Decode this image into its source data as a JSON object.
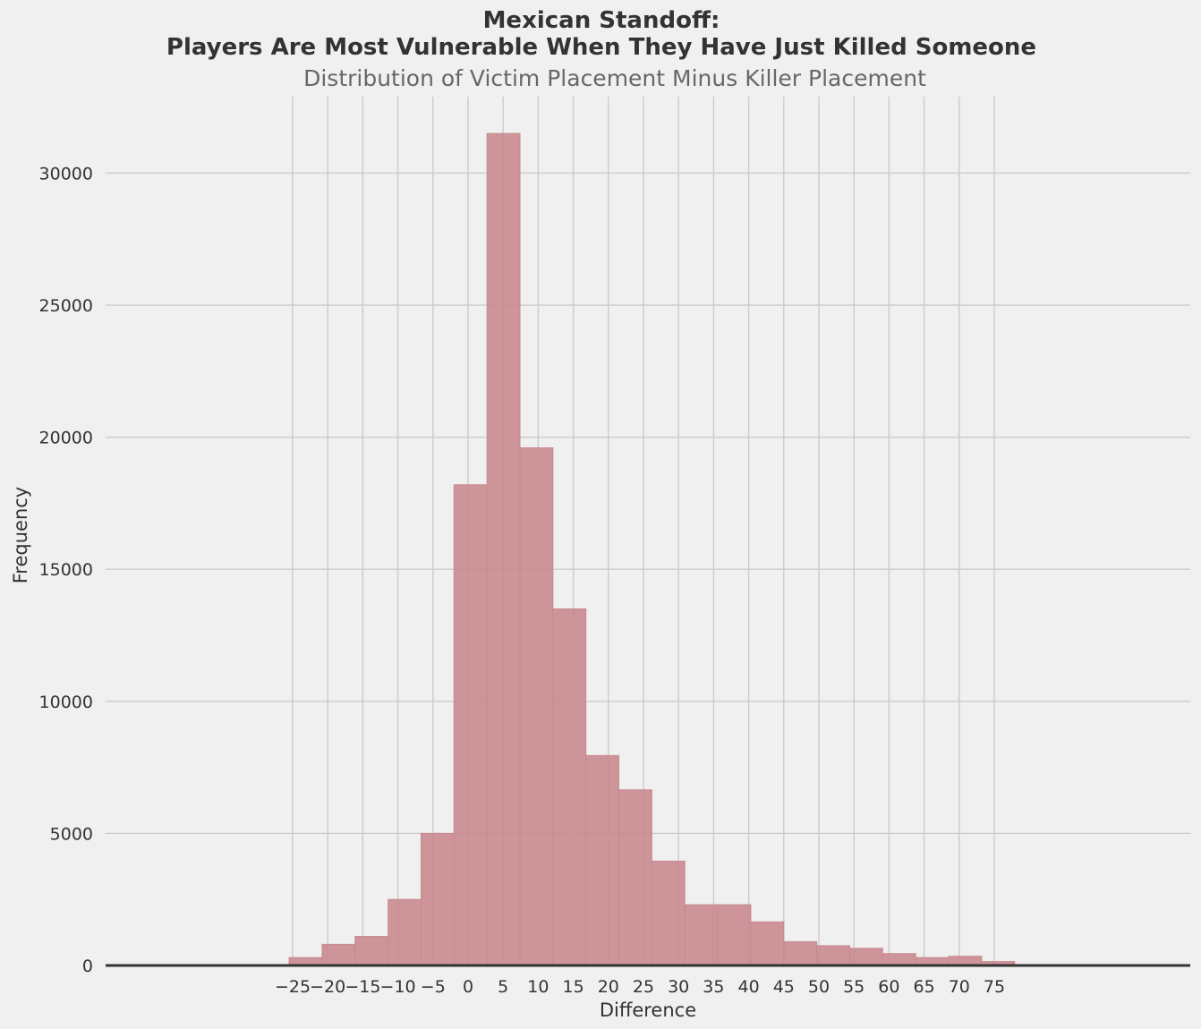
{
  "chart_data": {
    "type": "bar",
    "title_line1": "Mexican Standoff:",
    "title_line2": "Players Are Most Vulnerable When They Have Just Killed Someone",
    "subtitle": "Distribution of Victim Placement Minus Killer Placement",
    "xlabel": "Difference",
    "ylabel": "Frequency",
    "xlim": [
      -50,
      104
    ],
    "ylim": [
      0,
      32500
    ],
    "x_ticks": [
      -25,
      -20,
      -15,
      -10,
      -5,
      0,
      5,
      10,
      15,
      20,
      25,
      30,
      35,
      40,
      45,
      50,
      55,
      60,
      65,
      70,
      75
    ],
    "x_tick_labels": [
      "−25",
      "−20",
      "−15",
      "−10",
      "−5",
      "0",
      "5",
      "10",
      "15",
      "20",
      "25",
      "30",
      "35",
      "40",
      "45",
      "50",
      "55",
      "60",
      "65",
      "70",
      "75"
    ],
    "y_ticks": [
      0,
      5000,
      10000,
      15000,
      20000,
      25000,
      30000
    ],
    "y_tick_labels": [
      "0",
      "5000",
      "10000",
      "15000",
      "20000",
      "25000",
      "30000"
    ],
    "bin_edges": [
      -25.5,
      -20.8,
      -16.1,
      -11.4,
      -6.7,
      -2.0,
      2.7,
      7.4,
      12.1,
      16.8,
      21.5,
      26.2,
      30.9,
      35.6,
      40.3,
      45.0,
      49.7,
      54.4,
      59.1,
      63.8,
      68.5,
      73.2,
      77.9
    ],
    "values": [
      300,
      800,
      1100,
      2500,
      5000,
      18200,
      31500,
      19600,
      13500,
      7950,
      6650,
      3950,
      2300,
      2300,
      1650,
      900,
      750,
      650,
      450,
      300,
      350,
      150
    ],
    "grid": true,
    "bar_color": "#c98a8f"
  }
}
